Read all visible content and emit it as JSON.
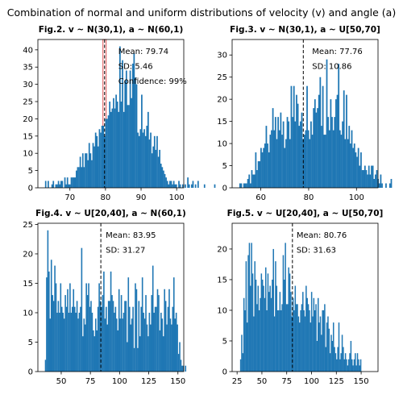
{
  "suptitle": "Combination of normal and uniform distributions of velocity (v) and angle (a)",
  "colors": {
    "bar": "#1f77b4",
    "mean_line": "#000000",
    "ci_band": "#d62728",
    "axis": "#000000"
  },
  "chart_data": [
    {
      "type": "bar",
      "title": "Fig.2. v ~ N(30,1), a ~ N(60,1)",
      "xlim": [
        61,
        102
      ],
      "ylim": [
        0,
        43
      ],
      "xticks": [
        70,
        80,
        90,
        100
      ],
      "yticks": [
        0,
        5,
        10,
        15,
        20,
        25,
        30,
        35,
        40
      ],
      "mean": 79.74,
      "annotations": [
        "Mean: 79.74",
        "SD: 5.46",
        "Confidence: 99%"
      ],
      "confidence_band": [
        79.3,
        80.2
      ],
      "bins": {
        "start": 63,
        "width": 0.36,
        "counts": [
          2,
          0,
          2,
          0,
          0,
          1,
          2,
          0,
          1,
          1,
          2,
          1,
          2,
          2,
          0,
          3,
          1,
          3,
          1,
          1,
          3,
          3,
          3,
          3,
          5,
          6,
          6,
          9,
          6,
          10,
          6,
          10,
          10,
          8,
          13,
          10,
          8,
          13,
          12,
          16,
          15,
          12,
          17,
          16,
          18,
          18,
          15,
          20,
          20,
          21,
          25,
          22,
          23,
          26,
          23,
          27,
          25,
          22,
          41,
          25,
          37,
          22,
          31,
          34,
          24,
          24,
          34,
          26,
          36,
          39,
          32,
          30,
          16,
          15,
          17,
          27,
          16,
          17,
          15,
          18,
          22,
          14,
          16,
          10,
          12,
          15,
          11,
          15,
          9,
          11,
          7,
          6,
          5,
          4,
          3,
          2,
          1,
          2,
          2,
          1,
          2,
          1,
          1,
          0,
          2,
          1,
          0,
          1,
          0,
          1,
          0,
          3,
          1,
          0,
          1,
          2,
          0,
          1,
          0,
          2,
          0,
          0,
          0,
          0,
          1,
          0,
          0,
          0,
          0,
          0,
          0,
          0,
          1,
          0
        ]
      }
    },
    {
      "type": "bar",
      "title": "Fig.3. v ~ N(30,1), a ~ U[50,70]",
      "xlim": [
        48,
        109
      ],
      "ylim": [
        0,
        33.5
      ],
      "xticks": [
        60,
        80,
        100
      ],
      "yticks": [
        0,
        5,
        10,
        15,
        20,
        25,
        30
      ],
      "mean": 77.76,
      "annotations": [
        "Mean: 77.76",
        "SD: 10.86"
      ],
      "bins": {
        "start": 51,
        "width": 0.55,
        "counts": [
          1,
          1,
          0,
          1,
          1,
          1,
          2,
          3,
          1,
          4,
          3,
          3,
          8,
          4,
          6,
          6,
          9,
          8,
          9,
          10,
          14,
          10,
          8,
          12,
          13,
          18,
          13,
          16,
          11,
          16,
          13,
          17,
          12,
          15,
          9,
          11,
          16,
          15,
          11,
          23,
          16,
          23,
          15,
          21,
          19,
          14,
          15,
          17,
          11,
          12,
          13,
          23,
          13,
          11,
          15,
          12,
          18,
          20,
          17,
          18,
          21,
          25,
          14,
          23,
          12,
          12,
          29,
          16,
          13,
          20,
          16,
          13,
          16,
          20,
          21,
          28,
          13,
          12,
          15,
          22,
          11,
          21,
          11,
          14,
          10,
          13,
          9,
          10,
          8,
          7,
          9,
          5,
          8,
          4,
          4,
          5,
          4,
          3,
          5,
          3,
          5,
          5,
          2,
          3,
          4,
          2,
          1,
          3,
          1,
          0,
          0,
          1,
          0,
          0,
          1,
          2
        ]
      }
    },
    {
      "type": "bar",
      "title": "Fig.4. v ~ U[20,40], a ~ N(60,1)",
      "xlim": [
        30,
        155
      ],
      "ylim": [
        0,
        25.2
      ],
      "xticks": [
        50,
        75,
        100,
        125,
        150
      ],
      "yticks": [
        0,
        5,
        10,
        15,
        20,
        25
      ],
      "mean": 83.95,
      "annotations": [
        "Mean: 83.95",
        "SD: 31.27"
      ],
      "bins": {
        "start": 36,
        "width": 1.0,
        "counts": [
          2,
          16,
          24,
          17,
          9,
          19,
          13,
          12,
          18,
          15,
          10,
          12,
          10,
          15,
          11,
          10,
          9,
          13,
          11,
          14,
          10,
          15,
          10,
          11,
          14,
          11,
          10,
          12,
          9,
          10,
          11,
          21,
          6,
          9,
          8,
          15,
          13,
          15,
          11,
          12,
          10,
          7,
          6,
          9,
          7,
          11,
          15,
          12,
          11,
          13,
          17,
          9,
          11,
          8,
          12,
          12,
          17,
          13,
          12,
          10,
          11,
          9,
          7,
          14,
          9,
          13,
          9,
          10,
          12,
          12,
          5,
          16,
          11,
          8,
          9,
          11,
          4,
          15,
          14,
          4,
          12,
          6,
          11,
          16,
          10,
          9,
          13,
          8,
          6,
          10,
          8,
          13,
          18,
          10,
          11,
          11,
          14,
          13,
          7,
          10,
          9,
          6,
          14,
          12,
          8,
          11,
          14,
          9,
          8,
          11,
          16,
          9,
          10,
          8,
          3,
          5,
          2,
          1,
          1,
          0,
          1
        ]
      }
    },
    {
      "type": "bar",
      "title": "Fig.5. v ~ U[20,40], a ~ U[50,70]",
      "xlim": [
        20,
        167
      ],
      "ylim": [
        0,
        24.2
      ],
      "xticks": [
        25,
        50,
        75,
        100,
        125,
        150
      ],
      "yticks": [
        0,
        5,
        10,
        15,
        20
      ],
      "mean": 80.76,
      "annotations": [
        "Mean: 80.76",
        "SD: 31.63"
      ],
      "bins": {
        "start": 28,
        "width": 1.1,
        "counts": [
          2,
          6,
          3,
          12,
          10,
          18,
          8,
          19,
          21,
          14,
          21,
          16,
          9,
          18,
          15,
          11,
          14,
          10,
          12,
          16,
          15,
          14,
          12,
          17,
          10,
          16,
          13,
          14,
          12,
          15,
          20,
          9,
          18,
          14,
          10,
          10,
          13,
          10,
          11,
          19,
          15,
          21,
          11,
          11,
          17,
          16,
          13,
          9,
          12,
          10,
          14,
          11,
          11,
          9,
          8,
          10,
          11,
          13,
          10,
          9,
          14,
          12,
          11,
          10,
          8,
          13,
          9,
          12,
          10,
          11,
          5,
          12,
          8,
          9,
          6,
          10,
          10,
          11,
          4,
          8,
          9,
          7,
          3,
          6,
          5,
          8,
          4,
          3,
          2,
          4,
          8,
          2,
          3,
          6,
          4,
          2,
          3,
          2,
          1,
          2,
          3,
          5,
          2,
          1,
          2,
          3,
          1,
          3,
          2,
          1,
          2
        ]
      }
    }
  ]
}
